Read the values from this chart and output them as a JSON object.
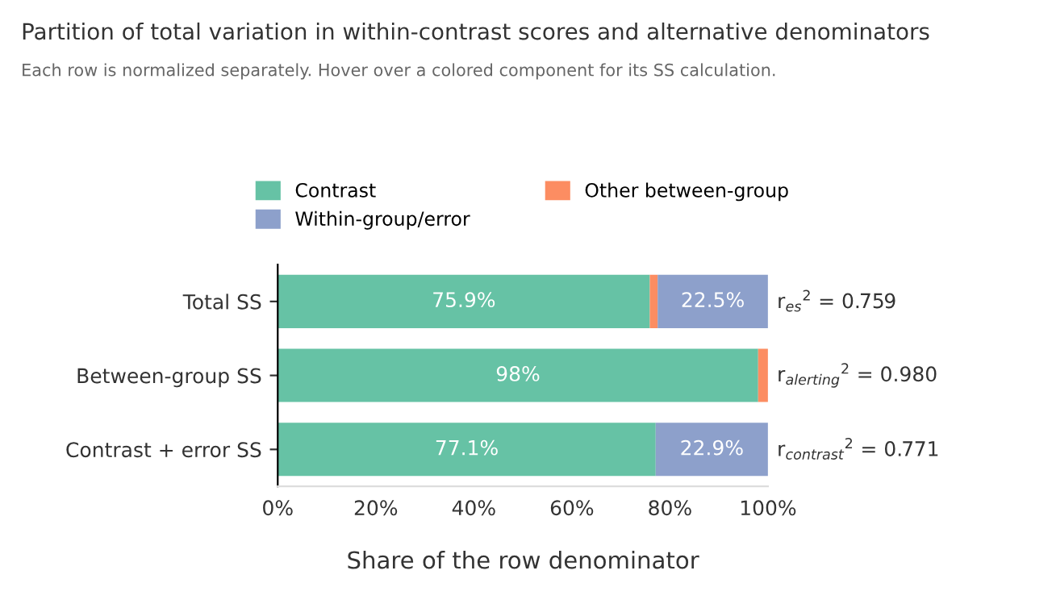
{
  "chart_data": {
    "type": "bar",
    "orientation": "horizontal",
    "stacked": true,
    "title": "Partition of total variation in within-contrast scores and alternative denominators",
    "subtitle": "Each row is normalized separately. Hover over a colored component for its SS calculation.",
    "xlabel": "Share of the row denominator",
    "categories": [
      "Total SS",
      "Between-group SS",
      "Contrast + error SS"
    ],
    "series": [
      {
        "name": "Contrast",
        "color": "#66c2a5",
        "values": [
          75.9,
          98,
          77.1
        ],
        "value_labels": [
          "75.9%",
          "98%",
          "77.1%"
        ]
      },
      {
        "name": "Other between-group",
        "color": "#fc8d62",
        "values": [
          1.6,
          2,
          0
        ]
      },
      {
        "name": "Within-group/error",
        "color": "#8da0cb",
        "values": [
          22.5,
          0,
          22.9
        ],
        "value_labels": [
          "22.5%",
          null,
          "22.9%"
        ]
      }
    ],
    "xlim": [
      0,
      100
    ],
    "xticks": [
      {
        "value": 0,
        "label": "0%"
      },
      {
        "value": 20,
        "label": "20%"
      },
      {
        "value": 40,
        "label": "40%"
      },
      {
        "value": 60,
        "label": "60%"
      },
      {
        "value": 80,
        "label": "80%"
      },
      {
        "value": 100,
        "label": "100%"
      }
    ],
    "annotations": [
      "r$_{es}$$^{2}$ = 0.759",
      "r$_{alerting}$$^{2}$ = 0.980",
      "r$_{contrast}$$^{2}$ = 0.771"
    ],
    "legend": "top",
    "grid": false
  }
}
